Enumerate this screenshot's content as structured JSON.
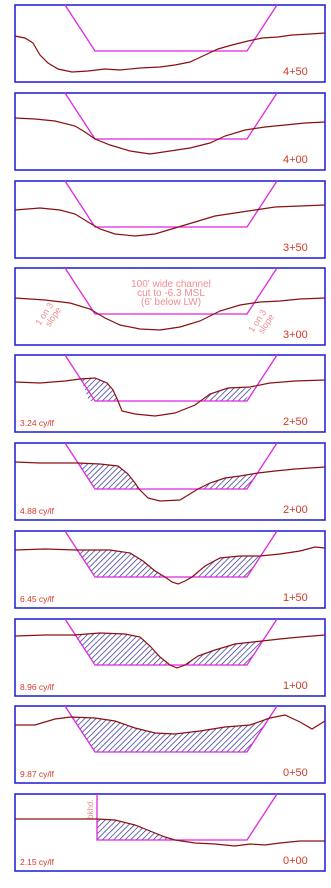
{
  "colors": {
    "frame": "#1a1ad6",
    "template": "#e026e0",
    "ground": "#8a1010",
    "hatch": "#1a1a8a",
    "label": "#d23a28",
    "annotation": "#f08c90"
  },
  "panels": [
    {
      "station": "4+50",
      "volume": ""
    },
    {
      "station": "4+00",
      "volume": ""
    },
    {
      "station": "3+50",
      "volume": ""
    },
    {
      "station": "3+00",
      "volume": ""
    },
    {
      "station": "2+50",
      "volume": "3.24 cy/lf"
    },
    {
      "station": "2+00",
      "volume": "4.88 cy/lf"
    },
    {
      "station": "1+50",
      "volume": "6.45 cy/lf"
    },
    {
      "station": "1+00",
      "volume": "8.96 cy/lf"
    },
    {
      "station": "0+50",
      "volume": "9.87 cy/lf"
    },
    {
      "station": "0+00",
      "volume": "2.15 cy/lf"
    }
  ],
  "annotations": {
    "channel_line1": "100' wide channel",
    "channel_line2": "cut to -6.3 MSL",
    "channel_line3": "(6' below LW)",
    "slope_left_1": "1 on 3",
    "slope_left_2": "slope",
    "slope_right_1": "1 on 3",
    "slope_right_2": "slope",
    "bkhd": "bkhd."
  }
}
